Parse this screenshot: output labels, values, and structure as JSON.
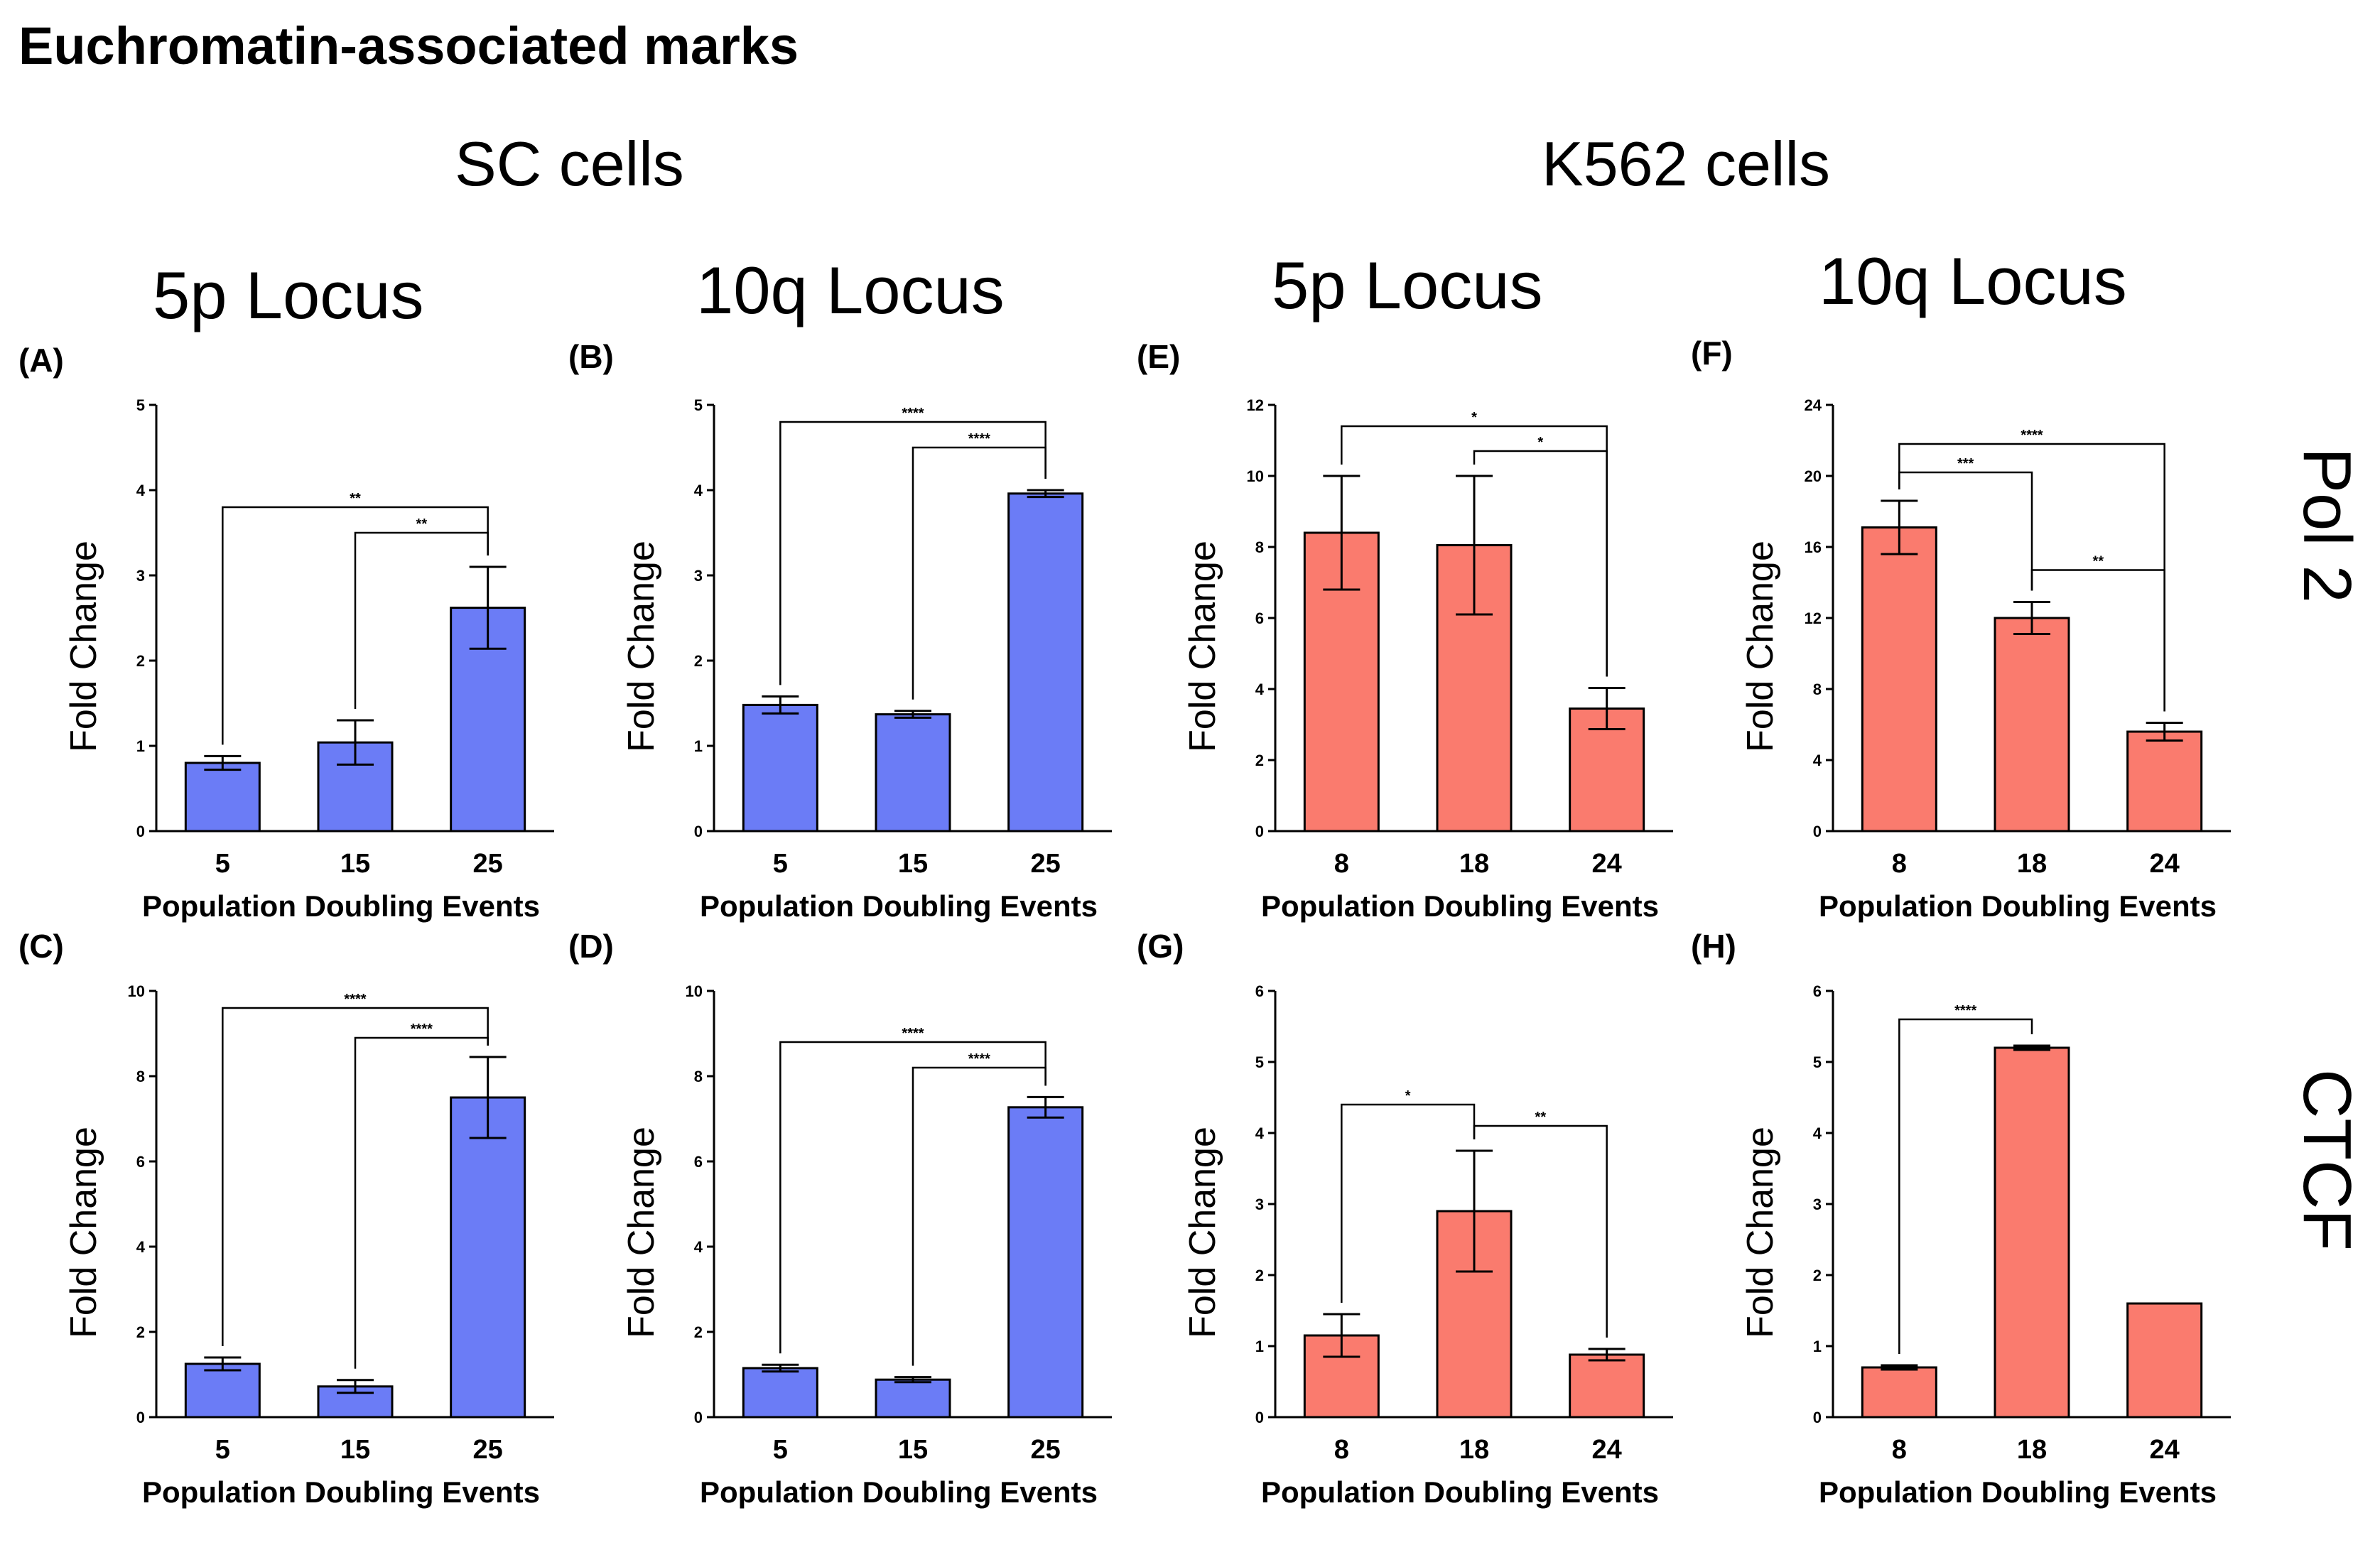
{
  "title": "Euchromatin-associated marks",
  "groups": {
    "sc": "SC cells",
    "k562": "K562 cells"
  },
  "locus_titles": {
    "sc_5p": "5p Locus",
    "sc_10q": "10q Locus",
    "k562_5p": "5p Locus",
    "k562_10q": "10q Locus"
  },
  "row_labels": {
    "top": "Pol 2",
    "bottom": "CTCF"
  },
  "colors": {
    "sc": "#6b7cf6",
    "k562": "#fa7b6e"
  },
  "chart_data": [
    {
      "panel": "(A)",
      "type": "bar",
      "color": "sc",
      "categories": [
        "5",
        "15",
        "25"
      ],
      "values": [
        0.8,
        1.04,
        2.62
      ],
      "errors": [
        0.08,
        0.26,
        0.48
      ],
      "xlabel": "Population Doubling Events",
      "ylabel": "Fold Change",
      "ylim": [
        0,
        5
      ],
      "ticks": [
        0,
        1,
        2,
        3,
        4,
        5
      ],
      "significance": [
        {
          "from": 0,
          "to": 2,
          "label": "**",
          "y": 3.8
        },
        {
          "from": 1,
          "to": 2,
          "label": "**",
          "y": 3.5
        }
      ]
    },
    {
      "panel": "(B)",
      "type": "bar",
      "color": "sc",
      "categories": [
        "5",
        "15",
        "25"
      ],
      "values": [
        1.48,
        1.37,
        3.96
      ],
      "errors": [
        0.1,
        0.04,
        0.04
      ],
      "xlabel": "Population Doubling Events",
      "ylabel": "Fold Change",
      "ylim": [
        0,
        5
      ],
      "ticks": [
        0,
        1,
        2,
        3,
        4,
        5
      ],
      "significance": [
        {
          "from": 0,
          "to": 2,
          "label": "****",
          "y": 4.8
        },
        {
          "from": 1,
          "to": 2,
          "label": "****",
          "y": 4.5
        }
      ]
    },
    {
      "panel": "(C)",
      "type": "bar",
      "color": "sc",
      "categories": [
        "5",
        "15",
        "25"
      ],
      "values": [
        1.25,
        0.72,
        7.5
      ],
      "errors": [
        0.15,
        0.15,
        0.95
      ],
      "xlabel": "Population Doubling Events",
      "ylabel": "Fold Change",
      "ylim": [
        0,
        10
      ],
      "ticks": [
        0,
        2,
        4,
        6,
        8,
        10
      ],
      "significance": [
        {
          "from": 0,
          "to": 2,
          "label": "****",
          "y": 9.6
        },
        {
          "from": 1,
          "to": 2,
          "label": "****",
          "y": 8.9
        }
      ]
    },
    {
      "panel": "(D)",
      "type": "bar",
      "color": "sc",
      "categories": [
        "5",
        "15",
        "25"
      ],
      "values": [
        1.15,
        0.88,
        7.27
      ],
      "errors": [
        0.08,
        0.06,
        0.24
      ],
      "xlabel": "Population Doubling Events",
      "ylabel": "Fold Change",
      "ylim": [
        0,
        10
      ],
      "ticks": [
        0,
        2,
        4,
        6,
        8,
        10
      ],
      "significance": [
        {
          "from": 0,
          "to": 2,
          "label": "****",
          "y": 8.8
        },
        {
          "from": 1,
          "to": 2,
          "label": "****",
          "y": 8.2
        }
      ]
    },
    {
      "panel": "(E)",
      "type": "bar",
      "color": "k562",
      "categories": [
        "8",
        "18",
        "24"
      ],
      "values": [
        8.4,
        8.05,
        3.45
      ],
      "errors": [
        1.6,
        1.95,
        0.58
      ],
      "xlabel": "Population Doubling Events",
      "ylabel": "Fold Change",
      "ylim": [
        0,
        12
      ],
      "ticks": [
        0,
        2,
        4,
        6,
        8,
        10,
        12
      ],
      "significance": [
        {
          "from": 0,
          "to": 2,
          "label": "*",
          "y": 11.4
        },
        {
          "from": 1,
          "to": 2,
          "label": "*",
          "y": 10.7
        }
      ]
    },
    {
      "panel": "(F)",
      "type": "bar",
      "color": "k562",
      "categories": [
        "8",
        "18",
        "24"
      ],
      "values": [
        17.1,
        12.0,
        5.6
      ],
      "errors": [
        1.5,
        0.9,
        0.5
      ],
      "xlabel": "Population Doubling Events",
      "ylabel": "Fold Change",
      "ylim": [
        0,
        24
      ],
      "ticks": [
        0,
        4,
        8,
        12,
        16,
        20,
        24
      ],
      "significance": [
        {
          "from": 0,
          "to": 2,
          "label": "****",
          "y": 21.8
        },
        {
          "from": 0,
          "to": 1,
          "label": "***",
          "y": 20.2
        },
        {
          "from": 1,
          "to": 2,
          "label": "**",
          "y": 14.7
        }
      ]
    },
    {
      "panel": "(G)",
      "type": "bar",
      "color": "k562",
      "categories": [
        "8",
        "18",
        "24"
      ],
      "values": [
        1.15,
        2.9,
        0.88
      ],
      "errors": [
        0.3,
        0.85,
        0.08
      ],
      "xlabel": "Population Doubling Events",
      "ylabel": "Fold Change",
      "ylim": [
        0,
        6
      ],
      "ticks": [
        0,
        1,
        2,
        3,
        4,
        5,
        6
      ],
      "significance": [
        {
          "from": 0,
          "to": 1,
          "label": "*",
          "y": 4.4
        },
        {
          "from": 1,
          "to": 2,
          "label": "**",
          "y": 4.1
        }
      ]
    },
    {
      "panel": "(H)",
      "type": "bar",
      "color": "k562",
      "categories": [
        "8",
        "18",
        "24"
      ],
      "values": [
        0.7,
        5.2,
        1.6
      ],
      "errors": [
        0.03,
        0.03,
        0
      ],
      "xlabel": "Population Doubling Events",
      "ylabel": "Fold Change",
      "ylim": [
        0,
        6
      ],
      "ticks": [
        0,
        1,
        2,
        3,
        4,
        5,
        6
      ],
      "significance": [
        {
          "from": 0,
          "to": 1,
          "label": "****",
          "y": 5.6
        }
      ]
    }
  ]
}
